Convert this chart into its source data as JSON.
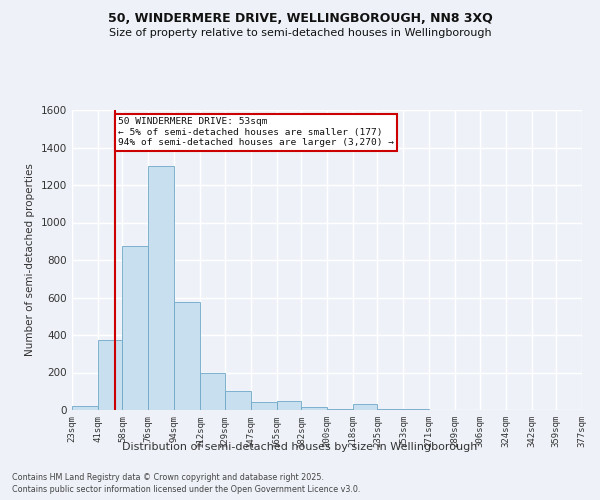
{
  "title": "50, WINDERMERE DRIVE, WELLINGBOROUGH, NN8 3XQ",
  "subtitle": "Size of property relative to semi-detached houses in Wellingborough",
  "xlabel": "Distribution of semi-detached houses by size in Wellingborough",
  "ylabel": "Number of semi-detached properties",
  "bin_edges": [
    23,
    41,
    58,
    76,
    94,
    112,
    129,
    147,
    165,
    182,
    200,
    218,
    235,
    253,
    271,
    289,
    306,
    324,
    342,
    359,
    377
  ],
  "bin_labels": [
    "23sqm",
    "41sqm",
    "58sqm",
    "76sqm",
    "94sqm",
    "112sqm",
    "129sqm",
    "147sqm",
    "165sqm",
    "182sqm",
    "200sqm",
    "218sqm",
    "235sqm",
    "253sqm",
    "271sqm",
    "289sqm",
    "306sqm",
    "324sqm",
    "342sqm",
    "359sqm",
    "377sqm"
  ],
  "counts": [
    20,
    375,
    875,
    1300,
    575,
    200,
    100,
    45,
    50,
    15,
    5,
    30,
    5,
    3,
    1,
    1,
    0,
    0,
    0,
    0
  ],
  "bar_color": "#c8dff0",
  "bar_edgecolor": "#6fa8c8",
  "property_size": 53,
  "property_label": "50 WINDERMERE DRIVE: 53sqm",
  "pct_smaller": 5,
  "n_smaller": 177,
  "pct_larger": 94,
  "n_larger": 3270,
  "red_line_color": "#cc0000",
  "annotation_box_edgecolor": "#cc0000",
  "ylim": [
    0,
    1600
  ],
  "yticks": [
    0,
    200,
    400,
    600,
    800,
    1000,
    1200,
    1400,
    1600
  ],
  "footer1": "Contains HM Land Registry data © Crown copyright and database right 2025.",
  "footer2": "Contains public sector information licensed under the Open Government Licence v3.0.",
  "bg_color": "#eef2f8",
  "grid_color": "#ffffff",
  "tick_label_color": "#333333",
  "axis_label_color": "#333333"
}
